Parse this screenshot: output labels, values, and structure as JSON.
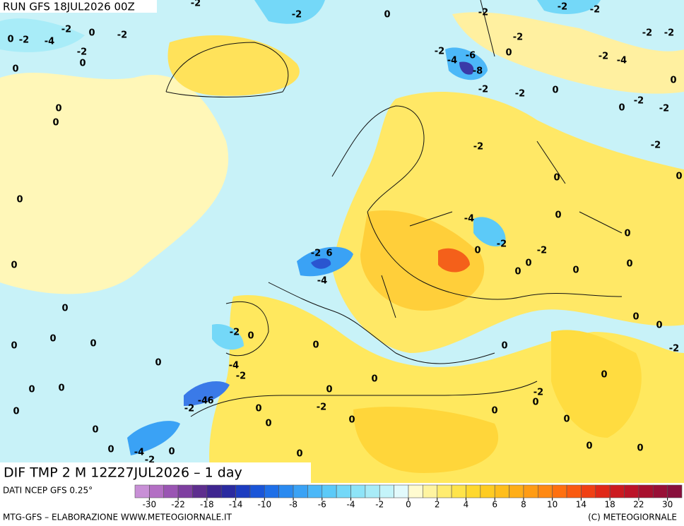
{
  "header": {
    "title": "RUN GFS 18JUL2026 00Z"
  },
  "map": {
    "caption": "DIF TMP 2 M 12Z27JUL2026 – 1 day",
    "contour_labels": [
      -2,
      -2,
      0,
      -2,
      -2,
      -2,
      -2,
      0,
      -4,
      -2,
      0,
      -2,
      -2,
      0,
      0,
      -2,
      -4,
      -6,
      -8,
      0,
      -2,
      -2,
      -2,
      0,
      -2,
      -4,
      -2,
      -2,
      0,
      -2,
      0,
      -2,
      0,
      0,
      -2,
      -2,
      0,
      0,
      0,
      -4,
      0,
      0,
      -2,
      0,
      -2,
      0,
      -2,
      6,
      0,
      0,
      0,
      0,
      -4,
      0,
      0,
      0,
      -2,
      0,
      0,
      0,
      0,
      0,
      0,
      -2,
      0,
      -4,
      -2,
      0,
      0,
      0,
      0,
      0,
      -2,
      0,
      -2,
      -4,
      6,
      -2,
      0,
      0,
      0,
      0,
      0,
      0,
      0,
      0,
      -4,
      -2,
      0,
      0,
      0,
      0
    ]
  },
  "legend": {
    "source": "DATI NCEP GFS 0.25°",
    "colors": [
      "#c88fd6",
      "#b36fc4",
      "#9a55b3",
      "#7e3fa0",
      "#5e2e8e",
      "#3f2590",
      "#2a2aa0",
      "#1c3cc0",
      "#1a55d8",
      "#1f6fe8",
      "#2a8af0",
      "#3aa2f5",
      "#4cb8f8",
      "#5ccaf8",
      "#74d8f8",
      "#8ee4f8",
      "#a8ecf8",
      "#c4f4fa",
      "#e2fafc",
      "#fffbd0",
      "#fff4a0",
      "#ffec70",
      "#ffe44a",
      "#ffd82e",
      "#ffcc22",
      "#ffbe1c",
      "#ffae18",
      "#ff9c14",
      "#ff8812",
      "#ff7010",
      "#fa5a10",
      "#f04014",
      "#e02818",
      "#cc1a20",
      "#bc1428",
      "#a8102e",
      "#981036",
      "#88103c"
    ],
    "ticks": [
      -30,
      -22,
      -18,
      -14,
      -10,
      -8,
      -6,
      -4,
      -2,
      0,
      2,
      4,
      6,
      8,
      10,
      14,
      18,
      22,
      30
    ]
  },
  "footer": {
    "left": "MTG-GFS – ELABORAZIONE WWW.METEOGIORNALE.IT",
    "right": "(C) METEOGIORNALE"
  }
}
